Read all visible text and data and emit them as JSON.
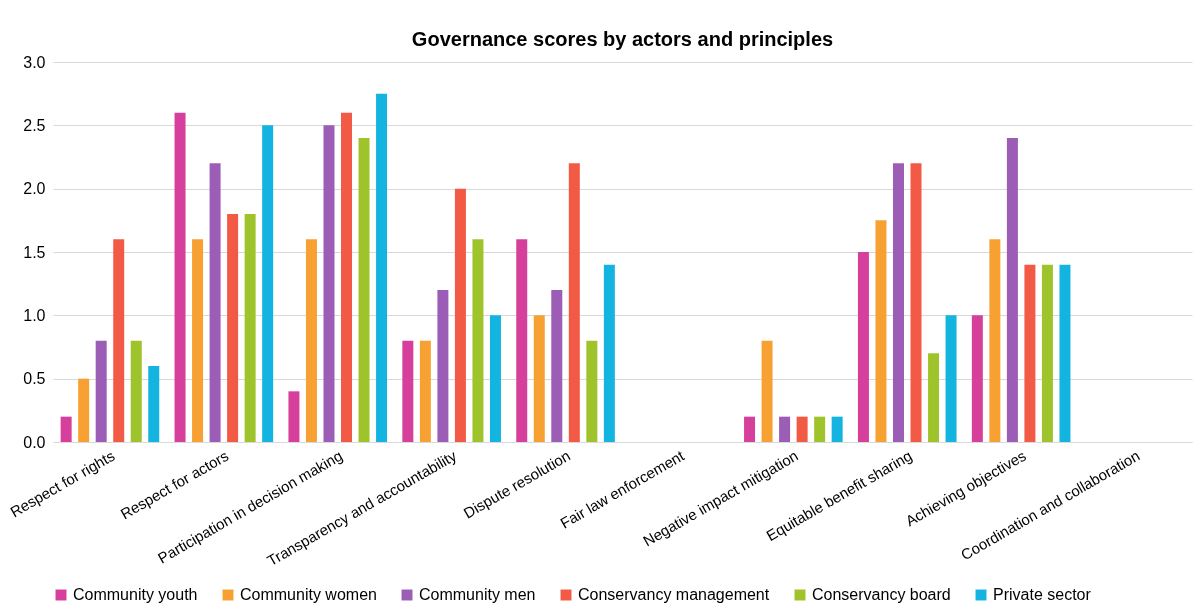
{
  "chart_data": {
    "type": "bar",
    "title": "Governance scores by actors and principles",
    "categories": [
      "Respect for rights",
      "Respect for actors",
      "Participation in decision making",
      "Transparency and accountability",
      "Dispute resolution",
      "Fair law enforcement",
      "Negative impact mitigation",
      "Equitable benefit sharing",
      "Achieving objectives",
      "Coordination and collaboration"
    ],
    "series": [
      {
        "name": "Community youth",
        "color": "#d6409c",
        "values": [
          0.2,
          2.6,
          0.4,
          0.8,
          1.6,
          null,
          0.2,
          1.5,
          1.0,
          null
        ]
      },
      {
        "name": "Community women",
        "color": "#f8a133",
        "values": [
          0.5,
          1.6,
          1.6,
          0.8,
          1.0,
          null,
          0.8,
          1.75,
          1.6,
          null
        ]
      },
      {
        "name": "Community men",
        "color": "#9b5db5",
        "values": [
          0.8,
          2.2,
          2.5,
          1.2,
          1.2,
          null,
          0.2,
          2.2,
          2.4,
          null
        ]
      },
      {
        "name": "Conservancy management",
        "color": "#f25a45",
        "values": [
          1.6,
          1.8,
          2.6,
          2.0,
          2.2,
          null,
          0.2,
          2.2,
          1.4,
          null
        ]
      },
      {
        "name": "Conservancy board",
        "color": "#9fc42b",
        "values": [
          0.8,
          1.8,
          2.4,
          1.6,
          0.8,
          null,
          0.2,
          0.7,
          1.4,
          null
        ]
      },
      {
        "name": "Private sector",
        "color": "#14b4e0",
        "values": [
          0.6,
          2.5,
          2.75,
          1.0,
          1.4,
          null,
          0.2,
          1.0,
          1.4,
          null
        ]
      }
    ],
    "ylim": [
      0,
      3.0
    ],
    "yticks": [
      {
        "value": 0,
        "label": "0.0"
      },
      {
        "value": 0.5,
        "label": "0.5"
      },
      {
        "value": 1,
        "label": "1.0"
      },
      {
        "value": 1.5,
        "label": "1.5"
      },
      {
        "value": 2,
        "label": "2.0"
      },
      {
        "value": 2.5,
        "label": "2.5"
      },
      {
        "value": 3,
        "label": "3.0"
      }
    ],
    "grid": "y",
    "legend": "bottom"
  }
}
